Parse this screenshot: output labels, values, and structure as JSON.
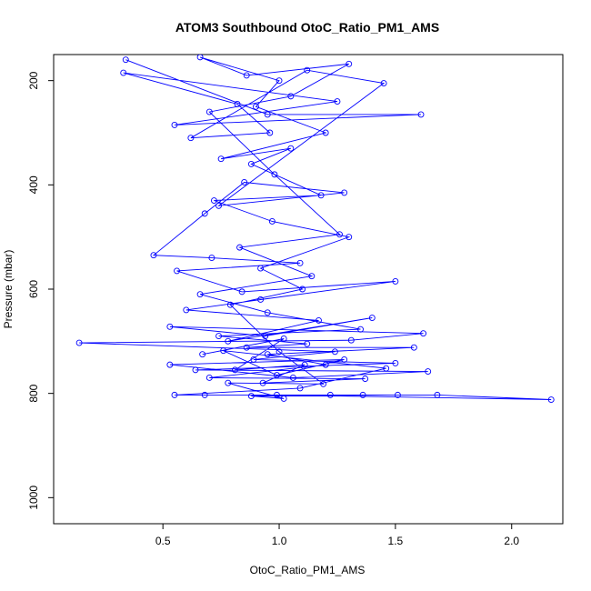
{
  "chart_data": {
    "type": "line",
    "title": "ATOM3 Southbound OtoC_Ratio_PM1_AMS",
    "xlabel": "OtoC_Ratio_PM1_AMS",
    "ylabel": "Pressure (mbar)",
    "xlim": [
      0.03,
      2.22
    ],
    "ylim": [
      1050,
      150
    ],
    "y_reversed": true,
    "x_ticks": [
      0.5,
      1.0,
      1.5,
      2.0
    ],
    "x_tick_labels": [
      "0.5",
      "1.0",
      "1.5",
      "2.0"
    ],
    "y_ticks": [
      200,
      400,
      600,
      800,
      1000
    ],
    "y_tick_labels": [
      "200",
      "400",
      "600",
      "800",
      "1000"
    ],
    "grid": false,
    "legend": "none",
    "series_color": "#0000ff",
    "marker": "open-circle",
    "series": [
      {
        "points": [
          [
            0.34,
            160
          ],
          [
            0.95,
            265
          ],
          [
            1.61,
            265
          ],
          [
            0.55,
            285
          ],
          [
            1.25,
            240
          ],
          [
            0.33,
            185
          ],
          [
            0.82,
            245
          ],
          [
            0.96,
            300
          ],
          [
            0.62,
            310
          ],
          [
            1.12,
            180
          ],
          [
            1.45,
            205
          ],
          [
            0.74,
            440
          ],
          [
            1.28,
            415
          ],
          [
            0.85,
            395
          ],
          [
            0.68,
            455
          ],
          [
            0.46,
            535
          ],
          [
            0.71,
            540
          ],
          [
            1.09,
            550
          ],
          [
            0.56,
            565
          ],
          [
            0.84,
            605
          ],
          [
            1.5,
            585
          ],
          [
            0.92,
            620
          ],
          [
            0.6,
            640
          ],
          [
            1.17,
            660
          ],
          [
            0.78,
            700
          ],
          [
            1.4,
            655
          ],
          [
            0.94,
            690
          ],
          [
            0.53,
            672
          ],
          [
            1.62,
            685
          ],
          [
            1.31,
            698
          ],
          [
            0.14,
            703
          ],
          [
            1.24,
            720
          ],
          [
            0.89,
            735
          ],
          [
            1.5,
            742
          ],
          [
            0.64,
            755
          ],
          [
            1.64,
            758
          ],
          [
            1.06,
            770
          ],
          [
            0.53,
            745
          ],
          [
            1.28,
            735
          ],
          [
            0.99,
            765
          ],
          [
            0.76,
            718
          ],
          [
            1.46,
            752
          ],
          [
            1.09,
            790
          ],
          [
            0.55,
            803
          ],
          [
            0.99,
            803
          ],
          [
            2.17,
            812
          ],
          [
            1.68,
            803
          ],
          [
            0.68,
            803
          ],
          [
            1.22,
            803
          ],
          [
            1.36,
            803
          ],
          [
            1.51,
            803
          ],
          [
            0.88,
            805
          ],
          [
            1.02,
            810
          ],
          [
            0.78,
            780
          ],
          [
            1.19,
            782
          ],
          [
            1.0,
            720
          ],
          [
            0.79,
            630
          ],
          [
            1.1,
            600
          ],
          [
            0.92,
            560
          ],
          [
            1.3,
            500
          ],
          [
            0.97,
            470
          ],
          [
            0.72,
            430
          ],
          [
            1.18,
            420
          ],
          [
            0.88,
            360
          ],
          [
            1.05,
            330
          ],
          [
            0.75,
            350
          ],
          [
            1.2,
            300
          ],
          [
            0.9,
            250
          ],
          [
            1.0,
            200
          ],
          [
            0.66,
            155
          ],
          [
            0.86,
            190
          ],
          [
            1.3,
            168
          ],
          [
            1.05,
            230
          ],
          [
            0.7,
            260
          ],
          [
            0.98,
            380
          ],
          [
            1.26,
            495
          ],
          [
            0.83,
            520
          ],
          [
            1.14,
            575
          ],
          [
            0.66,
            610
          ],
          [
            0.95,
            645
          ],
          [
            1.35,
            677
          ],
          [
            0.74,
            690
          ],
          [
            1.12,
            705
          ],
          [
            0.86,
            712
          ],
          [
            1.58,
            712
          ],
          [
            0.95,
            725
          ],
          [
            1.2,
            745
          ],
          [
            0.7,
            770
          ],
          [
            1.37,
            772
          ],
          [
            0.93,
            780
          ],
          [
            1.11,
            745
          ],
          [
            0.81,
            755
          ],
          [
            1.02,
            695
          ],
          [
            0.67,
            725
          ]
        ]
      }
    ]
  }
}
